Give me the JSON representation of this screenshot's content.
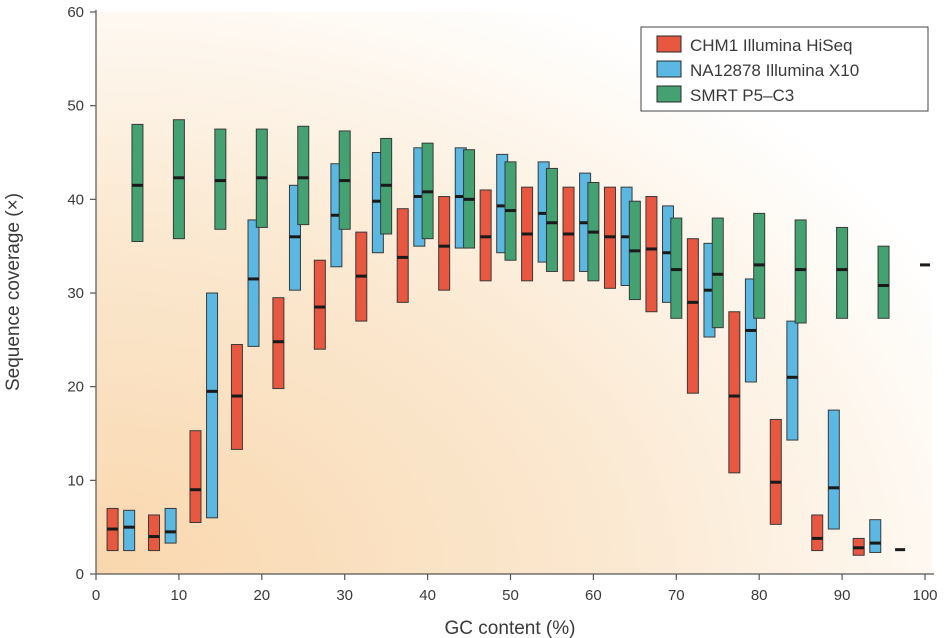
{
  "chart_data": {
    "type": "box",
    "title": "",
    "xlabel": "GC content (%)",
    "ylabel": "Sequence coverage (×)",
    "xlim": [
      0,
      100
    ],
    "ylim": [
      0,
      60
    ],
    "xticks": [
      "0",
      "10",
      "20",
      "30",
      "40",
      "50",
      "60",
      "70",
      "80",
      "90",
      "100"
    ],
    "yticks": [
      "0",
      "10",
      "20",
      "30",
      "40",
      "50",
      "60"
    ],
    "legend_position": "top-right",
    "series": [
      {
        "name": "CHM1 Illumina HiSeq",
        "color": "#e8573f",
        "boxes": [
          {
            "x": 2,
            "low": 2.5,
            "median": 4.8,
            "high": 7.0
          },
          {
            "x": 7,
            "low": 2.5,
            "median": 4.0,
            "high": 6.3
          },
          {
            "x": 12,
            "low": 5.5,
            "median": 9.0,
            "high": 15.3
          },
          {
            "x": 17,
            "low": 13.3,
            "median": 19.0,
            "high": 24.5
          },
          {
            "x": 22,
            "low": 19.8,
            "median": 24.8,
            "high": 29.5
          },
          {
            "x": 27,
            "low": 24.0,
            "median": 28.5,
            "high": 33.5
          },
          {
            "x": 32,
            "low": 27.0,
            "median": 31.8,
            "high": 36.5
          },
          {
            "x": 37,
            "low": 29.0,
            "median": 33.8,
            "high": 39.0
          },
          {
            "x": 42,
            "low": 30.3,
            "median": 35.0,
            "high": 40.3
          },
          {
            "x": 47,
            "low": 31.3,
            "median": 36.0,
            "high": 41.0
          },
          {
            "x": 52,
            "low": 31.3,
            "median": 36.3,
            "high": 41.3
          },
          {
            "x": 57,
            "low": 31.3,
            "median": 36.3,
            "high": 41.3
          },
          {
            "x": 62,
            "low": 30.5,
            "median": 36.0,
            "high": 41.3
          },
          {
            "x": 67,
            "low": 28.0,
            "median": 34.7,
            "high": 40.3
          },
          {
            "x": 72,
            "low": 19.3,
            "median": 29.0,
            "high": 35.8
          },
          {
            "x": 77,
            "low": 10.8,
            "median": 19.0,
            "high": 28.0
          },
          {
            "x": 82,
            "low": 5.3,
            "median": 9.8,
            "high": 16.5
          },
          {
            "x": 87,
            "low": 2.5,
            "median": 3.8,
            "high": 6.3
          },
          {
            "x": 92,
            "low": 2.0,
            "median": 2.8,
            "high": 3.8
          }
        ]
      },
      {
        "name": "NA12878 Illumina X10",
        "color": "#5ab8e3",
        "boxes": [
          {
            "x": 4,
            "low": 2.5,
            "median": 5.0,
            "high": 6.8
          },
          {
            "x": 9,
            "low": 3.3,
            "median": 4.5,
            "high": 7.0
          },
          {
            "x": 14,
            "low": 6.0,
            "median": 19.5,
            "high": 30.0
          },
          {
            "x": 19,
            "low": 24.3,
            "median": 31.5,
            "high": 37.8
          },
          {
            "x": 24,
            "low": 30.3,
            "median": 36.0,
            "high": 41.5
          },
          {
            "x": 29,
            "low": 32.8,
            "median": 38.3,
            "high": 43.8
          },
          {
            "x": 34,
            "low": 34.3,
            "median": 39.8,
            "high": 45.0
          },
          {
            "x": 39,
            "low": 35.0,
            "median": 40.3,
            "high": 45.5
          },
          {
            "x": 44,
            "low": 34.8,
            "median": 40.3,
            "high": 45.5
          },
          {
            "x": 49,
            "low": 34.3,
            "median": 39.3,
            "high": 44.8
          },
          {
            "x": 54,
            "low": 33.3,
            "median": 38.5,
            "high": 44.0
          },
          {
            "x": 59,
            "low": 32.3,
            "median": 37.5,
            "high": 42.8
          },
          {
            "x": 64,
            "low": 30.8,
            "median": 36.0,
            "high": 41.3
          },
          {
            "x": 69,
            "low": 29.0,
            "median": 34.3,
            "high": 39.3
          },
          {
            "x": 74,
            "low": 25.3,
            "median": 30.3,
            "high": 35.3
          },
          {
            "x": 79,
            "low": 20.5,
            "median": 26.0,
            "high": 31.5
          },
          {
            "x": 84,
            "low": 14.3,
            "median": 21.0,
            "high": 27.0
          },
          {
            "x": 89,
            "low": 4.8,
            "median": 9.2,
            "high": 17.5
          },
          {
            "x": 94,
            "low": 2.3,
            "median": 3.3,
            "high": 5.8
          }
        ]
      },
      {
        "name": "SMRT P5–C3",
        "color": "#44a272",
        "boxes": [
          {
            "x": 5,
            "low": 35.5,
            "median": 41.5,
            "high": 48.0
          },
          {
            "x": 10,
            "low": 35.8,
            "median": 42.3,
            "high": 48.5
          },
          {
            "x": 15,
            "low": 36.8,
            "median": 42.0,
            "high": 47.5
          },
          {
            "x": 20,
            "low": 37.0,
            "median": 42.3,
            "high": 47.5
          },
          {
            "x": 25,
            "low": 37.3,
            "median": 42.3,
            "high": 47.8
          },
          {
            "x": 30,
            "low": 36.8,
            "median": 42.0,
            "high": 47.3
          },
          {
            "x": 35,
            "low": 36.3,
            "median": 41.5,
            "high": 46.5
          },
          {
            "x": 40,
            "low": 35.8,
            "median": 40.8,
            "high": 46.0
          },
          {
            "x": 45,
            "low": 34.8,
            "median": 40.0,
            "high": 45.3
          },
          {
            "x": 50,
            "low": 33.5,
            "median": 38.8,
            "high": 44.0
          },
          {
            "x": 55,
            "low": 32.3,
            "median": 37.5,
            "high": 43.3
          },
          {
            "x": 60,
            "low": 31.3,
            "median": 36.5,
            "high": 41.8
          },
          {
            "x": 65,
            "low": 29.3,
            "median": 34.5,
            "high": 39.8
          },
          {
            "x": 70,
            "low": 27.3,
            "median": 32.5,
            "high": 38.0
          },
          {
            "x": 75,
            "low": 26.3,
            "median": 32.0,
            "high": 38.0
          },
          {
            "x": 80,
            "low": 27.3,
            "median": 33.0,
            "high": 38.5
          },
          {
            "x": 85,
            "low": 26.8,
            "median": 32.5,
            "high": 37.8
          },
          {
            "x": 90,
            "low": 27.3,
            "median": 32.5,
            "high": 37.0
          },
          {
            "x": 95,
            "low": 27.3,
            "median": 30.8,
            "high": 35.0
          }
        ]
      }
    ],
    "unboxed_medians": [
      {
        "x": 97,
        "value": 2.6
      },
      {
        "x": 100,
        "value": 33.0
      }
    ]
  }
}
